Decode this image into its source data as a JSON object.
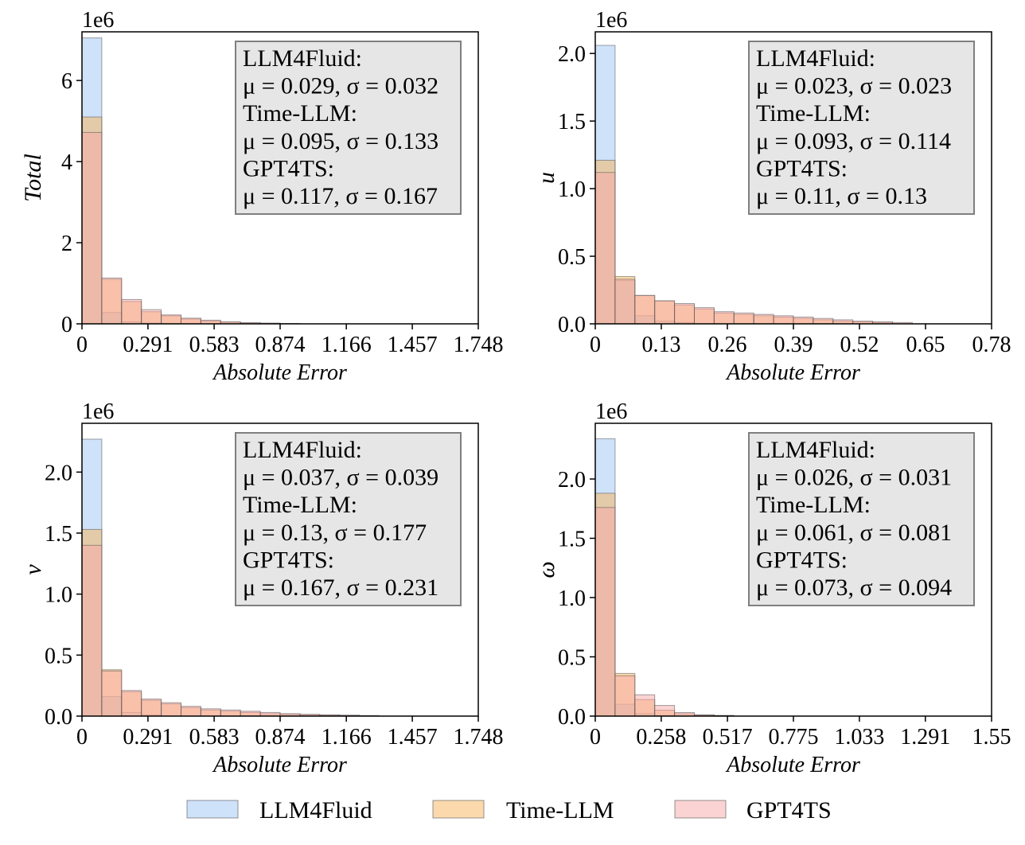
{
  "colors": {
    "LLM4Fluid": "#9ec5f3",
    "Time-LLM": "#f8b45a",
    "GPT4TS": "#f7a7a7",
    "stat_box_fill": "#e6e6e6",
    "stat_box_stroke": "#7f7f7f"
  },
  "legend": {
    "items": [
      {
        "label": "LLM4Fluid",
        "color": "#9ec5f3"
      },
      {
        "label": "Time-LLM",
        "color": "#f8b45a"
      },
      {
        "label": "GPT4TS",
        "color": "#f7a7a7"
      }
    ]
  },
  "chart_data": [
    {
      "type": "histogram",
      "ylabel": "Total",
      "xlabel": "Absolute Error",
      "multiplier": "1e6",
      "xlim": [
        0,
        1.748
      ],
      "ylim": [
        0,
        7.2
      ],
      "xticks": [
        0,
        0.291,
        0.583,
        0.874,
        1.166,
        1.457,
        1.748
      ],
      "xtick_labels": [
        "0",
        "0.291",
        "0.583",
        "0.874",
        "1.166",
        "1.457",
        "1.748"
      ],
      "yticks": [
        0,
        2,
        4,
        6
      ],
      "ytick_labels": [
        "0",
        "2",
        "4",
        "6"
      ],
      "bin_width": 0.0874,
      "series": [
        {
          "name": "LLM4Fluid",
          "values": [
            7.05,
            0.28,
            0.05,
            0.02,
            0.01,
            0.005
          ]
        },
        {
          "name": "Time-LLM",
          "values": [
            5.1,
            1.1,
            0.55,
            0.3,
            0.2,
            0.12,
            0.07,
            0.04,
            0.02,
            0.01
          ]
        },
        {
          "name": "GPT4TS",
          "values": [
            4.72,
            1.13,
            0.6,
            0.35,
            0.22,
            0.14,
            0.09,
            0.05,
            0.03,
            0.02,
            0.01
          ]
        }
      ],
      "stats": [
        "LLM4Fluid:",
        "μ = 0.029, σ = 0.032",
        "Time-LLM:",
        "μ = 0.095, σ = 0.133",
        "GPT4TS:",
        "μ = 0.117, σ = 0.167"
      ]
    },
    {
      "type": "histogram",
      "ylabel": "u",
      "xlabel": "Absolute Error",
      "multiplier": "1e6",
      "xlim": [
        0,
        0.78
      ],
      "ylim": [
        0,
        2.16
      ],
      "xticks": [
        0,
        0.13,
        0.26,
        0.39,
        0.52,
        0.65,
        0.78
      ],
      "xtick_labels": [
        "0",
        "0.13",
        "0.26",
        "0.39",
        "0.52",
        "0.65",
        "0.78"
      ],
      "yticks": [
        0,
        0.5,
        1.0,
        1.5,
        2.0
      ],
      "ytick_labels": [
        "0.0",
        "0.5",
        "1.0",
        "1.5",
        "2.0"
      ],
      "bin_width": 0.039,
      "series": [
        {
          "name": "LLM4Fluid",
          "values": [
            2.06,
            0.32,
            0.06,
            0.02,
            0.01
          ]
        },
        {
          "name": "Time-LLM",
          "values": [
            1.21,
            0.35,
            0.21,
            0.17,
            0.14,
            0.11,
            0.08,
            0.07,
            0.06,
            0.05,
            0.04,
            0.03,
            0.02,
            0.015,
            0.01
          ]
        },
        {
          "name": "GPT4TS",
          "values": [
            1.12,
            0.33,
            0.21,
            0.17,
            0.15,
            0.12,
            0.09,
            0.08,
            0.07,
            0.06,
            0.05,
            0.04,
            0.03,
            0.02,
            0.015,
            0.01
          ]
        }
      ],
      "stats": [
        "LLM4Fluid:",
        "μ = 0.023, σ = 0.023",
        "Time-LLM:",
        "μ = 0.093, σ = 0.114",
        "GPT4TS:",
        "μ = 0.11, σ = 0.13"
      ]
    },
    {
      "type": "histogram",
      "ylabel": "v",
      "xlabel": "Absolute Error",
      "multiplier": "1e6",
      "xlim": [
        0,
        1.748
      ],
      "ylim": [
        0,
        2.4
      ],
      "xticks": [
        0,
        0.291,
        0.583,
        0.874,
        1.166,
        1.457,
        1.748
      ],
      "xtick_labels": [
        "0",
        "0.291",
        "0.583",
        "0.874",
        "1.166",
        "1.457",
        "1.748"
      ],
      "yticks": [
        0,
        0.5,
        1.0,
        1.5,
        2.0
      ],
      "ytick_labels": [
        "0.0",
        "0.5",
        "1.0",
        "1.5",
        "2.0"
      ],
      "bin_width": 0.0874,
      "series": [
        {
          "name": "LLM4Fluid",
          "values": [
            2.27,
            0.16,
            0.03,
            0.01
          ]
        },
        {
          "name": "Time-LLM",
          "values": [
            1.53,
            0.38,
            0.2,
            0.13,
            0.1,
            0.07,
            0.05,
            0.04,
            0.03,
            0.02,
            0.015,
            0.01,
            0.008,
            0.005
          ]
        },
        {
          "name": "GPT4TS",
          "values": [
            1.4,
            0.37,
            0.21,
            0.14,
            0.11,
            0.08,
            0.06,
            0.05,
            0.04,
            0.03,
            0.02,
            0.015,
            0.01,
            0.008,
            0.005
          ]
        }
      ],
      "stats": [
        "LLM4Fluid:",
        "μ = 0.037, σ = 0.039",
        "Time-LLM:",
        "μ = 0.13, σ = 0.177",
        "GPT4TS:",
        "μ = 0.167, σ = 0.231"
      ]
    },
    {
      "type": "histogram",
      "ylabel": "ω",
      "xlabel": "Absolute Error",
      "multiplier": "1e6",
      "xlim": [
        0,
        1.55
      ],
      "ylim": [
        0,
        2.47
      ],
      "xticks": [
        0,
        0.258,
        0.517,
        0.775,
        1.033,
        1.291,
        1.55
      ],
      "xtick_labels": [
        "0",
        "0.258",
        "0.517",
        "0.775",
        "1.033",
        "1.291",
        "1.55"
      ],
      "yticks": [
        0,
        0.5,
        1.0,
        1.5,
        2.0
      ],
      "ytick_labels": [
        "0.0",
        "0.5",
        "1.0",
        "1.5",
        "2.0"
      ],
      "bin_width": 0.0775,
      "series": [
        {
          "name": "LLM4Fluid",
          "values": [
            2.34,
            0.1,
            0.02,
            0.005
          ]
        },
        {
          "name": "Time-LLM",
          "values": [
            1.88,
            0.36,
            0.14,
            0.05,
            0.02,
            0.01,
            0.005
          ]
        },
        {
          "name": "GPT4TS",
          "values": [
            1.76,
            0.34,
            0.18,
            0.09,
            0.03,
            0.01,
            0.005
          ]
        }
      ],
      "stats": [
        "LLM4Fluid:",
        "μ = 0.026, σ = 0.031",
        "Time-LLM:",
        "μ = 0.061, σ = 0.081",
        "GPT4TS:",
        "μ = 0.073, σ = 0.094"
      ]
    }
  ]
}
